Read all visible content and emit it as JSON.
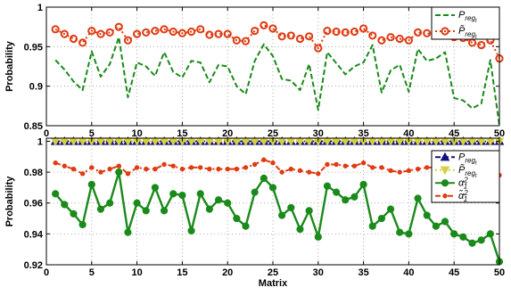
{
  "chart_data": [
    {
      "type": "line",
      "ylabel": "Probability",
      "xlabel": "",
      "xlim": [
        0,
        50
      ],
      "ylim": [
        0.85,
        1
      ],
      "x_ticks": [
        0,
        5,
        10,
        15,
        20,
        25,
        30,
        35,
        40,
        45,
        50
      ],
      "y_ticks": [
        0.85,
        0.9,
        0.95,
        1
      ],
      "y_tick_labels": [
        "0.85",
        "0.9",
        "0.95",
        "1"
      ],
      "grid": true,
      "grid_style": "dotted",
      "legend_position": "top-right",
      "x": [
        1,
        2,
        3,
        4,
        5,
        6,
        7,
        8,
        9,
        10,
        11,
        12,
        13,
        14,
        15,
        16,
        17,
        18,
        19,
        20,
        21,
        22,
        23,
        24,
        25,
        26,
        27,
        28,
        29,
        30,
        31,
        32,
        33,
        34,
        35,
        36,
        37,
        38,
        39,
        40,
        41,
        42,
        43,
        44,
        45,
        46,
        47,
        48,
        49,
        50
      ],
      "series": [
        {
          "name": "P_reg_t",
          "label_main": "P",
          "label_sub": "reg",
          "label_subsub": "t",
          "label_tilde": false,
          "color": "#1a8a1a",
          "style": "dashed",
          "marker": "none",
          "values": [
            0.933,
            0.921,
            0.906,
            0.895,
            0.944,
            0.912,
            0.928,
            0.962,
            0.886,
            0.93,
            0.925,
            0.913,
            0.943,
            0.918,
            0.911,
            0.932,
            0.93,
            0.905,
            0.927,
            0.925,
            0.9,
            0.89,
            0.932,
            0.953,
            0.938,
            0.909,
            0.907,
            0.895,
            0.928,
            0.87,
            0.943,
            0.929,
            0.915,
            0.925,
            0.93,
            0.952,
            0.892,
            0.92,
            0.927,
            0.893,
            0.947,
            0.932,
            0.935,
            0.943,
            0.885,
            0.882,
            0.872,
            0.878,
            0.933,
            0.85
          ]
        },
        {
          "name": "P~_reg_t",
          "label_main": "P",
          "label_sub": "reg",
          "label_subsub": "t",
          "label_tilde": true,
          "color": "#e03a10",
          "style": "dotted",
          "marker": "circle-open",
          "values": [
            0.972,
            0.966,
            0.96,
            0.955,
            0.97,
            0.966,
            0.968,
            0.975,
            0.958,
            0.966,
            0.968,
            0.97,
            0.972,
            0.969,
            0.967,
            0.969,
            0.972,
            0.965,
            0.966,
            0.966,
            0.958,
            0.957,
            0.97,
            0.977,
            0.973,
            0.963,
            0.964,
            0.96,
            0.963,
            0.948,
            0.97,
            0.969,
            0.968,
            0.969,
            0.973,
            0.964,
            0.958,
            0.962,
            0.96,
            0.958,
            0.968,
            0.967,
            0.964,
            0.964,
            0.962,
            0.961,
            0.955,
            0.952,
            0.958,
            0.935
          ]
        }
      ]
    },
    {
      "type": "line",
      "ylabel": "Probability",
      "xlabel": "Matrix",
      "xlim": [
        0,
        50
      ],
      "ylim": [
        0.92,
        1.002
      ],
      "x_ticks": [
        0,
        5,
        10,
        15,
        20,
        25,
        30,
        35,
        40,
        45,
        50
      ],
      "y_ticks": [
        0.92,
        0.94,
        0.96,
        0.98,
        1
      ],
      "y_tick_labels": [
        "0.92",
        "0.94",
        "0.96",
        "0.98",
        "1"
      ],
      "grid": true,
      "grid_style": "dotted",
      "legend_position": "top-right",
      "x": [
        1,
        2,
        3,
        4,
        5,
        6,
        7,
        8,
        9,
        10,
        11,
        12,
        13,
        14,
        15,
        16,
        17,
        18,
        19,
        20,
        21,
        22,
        23,
        24,
        25,
        26,
        27,
        28,
        29,
        30,
        31,
        32,
        33,
        34,
        35,
        36,
        37,
        38,
        39,
        40,
        41,
        42,
        43,
        44,
        45,
        46,
        47,
        48,
        49,
        50
      ],
      "series": [
        {
          "name": "P_reg_t",
          "label_main": "P",
          "label_sub": "reg",
          "label_subsub": "t",
          "label_tilde": false,
          "label_sup": "",
          "color": "#101080",
          "style": "dashed",
          "marker": "triangle-up",
          "values": [
            1,
            1,
            1,
            1,
            1,
            1,
            1,
            1,
            1,
            1,
            1,
            1,
            1,
            1,
            1,
            1,
            1,
            1,
            1,
            1,
            1,
            1,
            1,
            1,
            1,
            1,
            1,
            1,
            1,
            1,
            1,
            1,
            1,
            1,
            1,
            1,
            1,
            1,
            1,
            1,
            1,
            1,
            1,
            1,
            1,
            1,
            1,
            1,
            1,
            1
          ]
        },
        {
          "name": "P~_reg_t",
          "label_main": "P",
          "label_sub": "reg",
          "label_subsub": "t",
          "label_tilde": true,
          "label_sup": "",
          "color": "#d6d040",
          "style": "dotted",
          "marker": "triangle-down",
          "values": [
            1,
            1,
            1,
            1,
            1,
            1,
            1,
            1,
            1,
            1,
            1,
            1,
            1,
            1,
            1,
            1,
            1,
            1,
            1,
            1,
            1,
            1,
            1,
            1,
            1,
            1,
            1,
            1,
            1,
            1,
            1,
            1,
            1,
            1,
            1,
            1,
            1,
            1,
            1,
            1,
            1,
            1,
            1,
            1,
            1,
            1,
            1,
            1,
            1,
            1
          ]
        },
        {
          "name": "alpha_1^2",
          "label_main": "α",
          "label_sub": "1",
          "label_subsub": "",
          "label_tilde": false,
          "label_sup": "2",
          "color": "#1a8a1a",
          "style": "solid",
          "marker": "circle-filled",
          "values": [
            0.966,
            0.959,
            0.953,
            0.946,
            0.972,
            0.956,
            0.96,
            0.98,
            0.941,
            0.96,
            0.955,
            0.97,
            0.955,
            0.966,
            0.965,
            0.942,
            0.966,
            0.956,
            0.962,
            0.96,
            0.95,
            0.945,
            0.967,
            0.976,
            0.97,
            0.952,
            0.957,
            0.943,
            0.955,
            0.938,
            0.971,
            0.967,
            0.962,
            0.964,
            0.972,
            0.945,
            0.95,
            0.956,
            0.941,
            0.94,
            0.963,
            0.952,
            0.945,
            0.948,
            0.94,
            0.938,
            0.934,
            0.936,
            0.94,
            0.922
          ]
        },
        {
          "name": "alpha~_1^2",
          "label_main": "α",
          "label_sub": "1",
          "label_subsub": "",
          "label_tilde": true,
          "label_sup": "2",
          "color": "#e03a10",
          "style": "dashdot",
          "marker": "dot",
          "values": [
            0.986,
            0.984,
            0.982,
            0.979,
            0.983,
            0.98,
            0.982,
            0.984,
            0.979,
            0.983,
            0.982,
            0.982,
            0.985,
            0.984,
            0.982,
            0.983,
            0.983,
            0.982,
            0.982,
            0.982,
            0.982,
            0.983,
            0.985,
            0.988,
            0.986,
            0.98,
            0.982,
            0.981,
            0.98,
            0.979,
            0.985,
            0.985,
            0.984,
            0.984,
            0.986,
            0.983,
            0.983,
            0.981,
            0.98,
            0.981,
            0.982,
            0.983,
            0.983,
            0.983,
            0.983,
            0.982,
            0.98,
            0.979,
            0.982,
            0.978
          ]
        }
      ]
    }
  ]
}
